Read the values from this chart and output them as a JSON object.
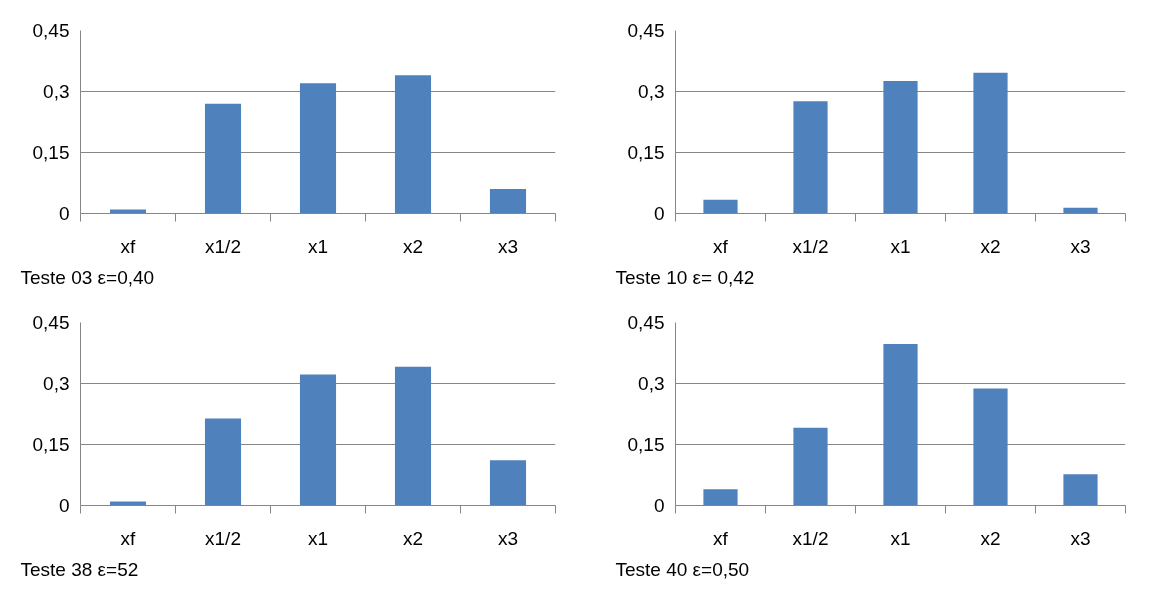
{
  "chart_data": [
    {
      "type": "bar",
      "title": "Teste 03     ε=0,40",
      "categories": [
        "xf",
        "x1/2",
        "x1",
        "x2",
        "x3"
      ],
      "values": [
        0.01,
        0.27,
        0.32,
        0.34,
        0.06
      ],
      "color": "#4f81bd",
      "ylim": [
        0,
        0.45
      ],
      "yticks": [
        {
          "value": 0,
          "label": "0"
        },
        {
          "value": 0.15,
          "label": "0,15"
        },
        {
          "value": 0.3,
          "label": "0,3"
        },
        {
          "value": 0.45,
          "label": "0,45"
        }
      ],
      "grid": "y"
    },
    {
      "type": "bar",
      "title": "Teste 10  ε= 0,42",
      "categories": [
        "xf",
        "x1/2",
        "x1",
        "x2",
        "x3"
      ],
      "values": [
        0.034,
        0.276,
        0.326,
        0.346,
        0.014
      ],
      "color": "#4f81bd",
      "ylim": [
        0,
        0.45
      ],
      "yticks": [
        {
          "value": 0,
          "label": "0"
        },
        {
          "value": 0.15,
          "label": "0,15"
        },
        {
          "value": 0.3,
          "label": "0,3"
        },
        {
          "value": 0.45,
          "label": "0,45"
        }
      ],
      "grid": "y"
    },
    {
      "type": "bar",
      "title": "Teste 38  ε=52",
      "categories": [
        "xf",
        "x1/2",
        "x1",
        "x2",
        "x3"
      ],
      "values": [
        0.01,
        0.214,
        0.322,
        0.341,
        0.111
      ],
      "color": "#4f81bd",
      "ylim": [
        0,
        0.45
      ],
      "yticks": [
        {
          "value": 0,
          "label": "0"
        },
        {
          "value": 0.15,
          "label": "0,15"
        },
        {
          "value": 0.3,
          "label": "0,3"
        },
        {
          "value": 0.45,
          "label": "0,45"
        }
      ],
      "grid": "y"
    },
    {
      "type": "bar",
      "title": "Teste 40  ε=0,50",
      "categories": [
        "xf",
        "x1/2",
        "x1",
        "x2",
        "x3"
      ],
      "values": [
        0.04,
        0.191,
        0.397,
        0.288,
        0.077
      ],
      "color": "#4f81bd",
      "ylim": [
        0,
        0.45
      ],
      "yticks": [
        {
          "value": 0,
          "label": "0"
        },
        {
          "value": 0.15,
          "label": "0,15"
        },
        {
          "value": 0.3,
          "label": "0,3"
        },
        {
          "value": 0.45,
          "label": "0,45"
        }
      ],
      "grid": "y"
    }
  ]
}
